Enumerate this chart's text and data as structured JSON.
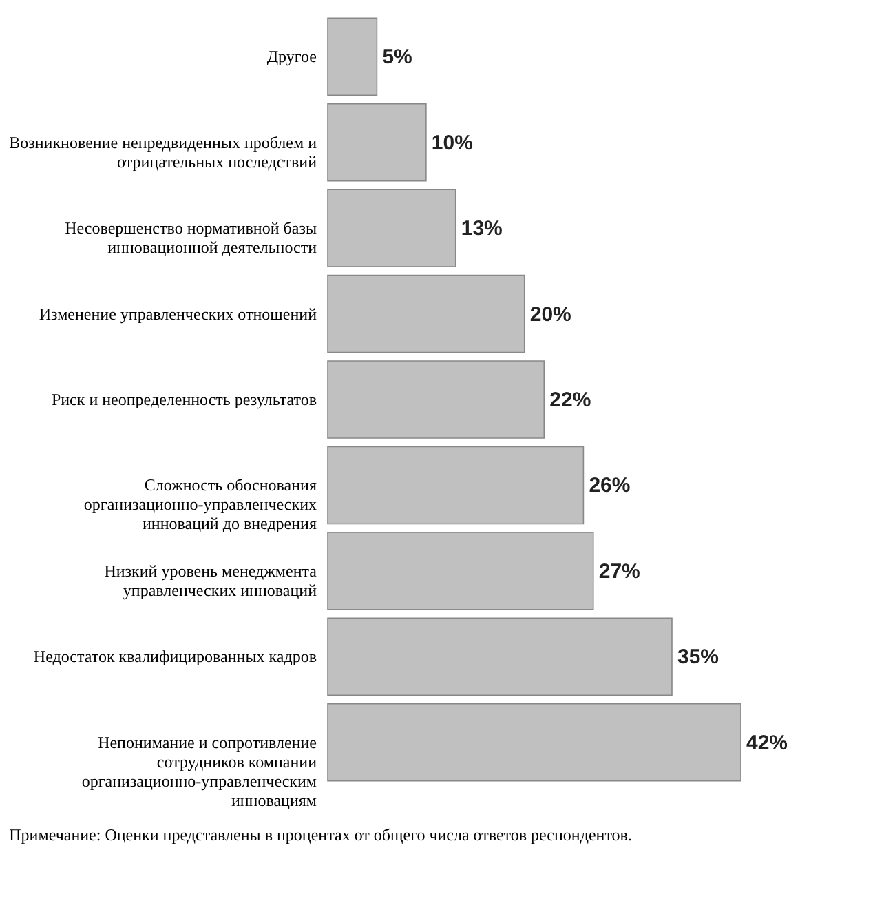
{
  "chart_data": {
    "type": "bar",
    "orientation": "horizontal",
    "data_labels": true,
    "categories": [
      "Другое",
      "Возникновение непредвиденных проблем и отрицательных последствий",
      "Несовершенство нормативной базы инновационной деятельности",
      "Изменение управленческих отношений",
      "Риск и неопределенность результатов",
      "Сложность обоснования организационно-управленческих инноваций до внедрения",
      "Низкий уровень менеджмента управленческих инноваций",
      "Недостаток квалифицированных кадров",
      "Непонимание и сопротивление сотрудников компании организационно-управленческим инновациям"
    ],
    "values": [
      5,
      10,
      13,
      20,
      22,
      26,
      27,
      35,
      42
    ],
    "value_labels": [
      "5%",
      "10%",
      "13%",
      "20%",
      "22%",
      "26%",
      "27%",
      "35%",
      "42%"
    ],
    "color": "#c0c0c0",
    "annotations": [
      "Примечание: Оценки представлены в процентах от общего числа ответов респондентов."
    ]
  }
}
